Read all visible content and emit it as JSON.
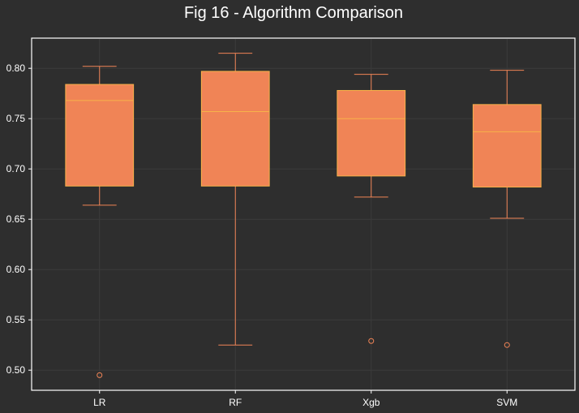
{
  "chart_data": {
    "type": "box",
    "title": "Fig 16 - Algorithm Comparison",
    "xlabel": "",
    "ylabel": "",
    "categories": [
      "LR",
      "RF",
      "Xgb",
      "SVM"
    ],
    "boxes": [
      {
        "category": "LR",
        "whisker_low": 0.664,
        "q1": 0.683,
        "median": 0.768,
        "q3": 0.784,
        "whisker_high": 0.802,
        "outliers": [
          0.495
        ]
      },
      {
        "category": "RF",
        "whisker_low": 0.525,
        "q1": 0.683,
        "median": 0.757,
        "q3": 0.797,
        "whisker_high": 0.815,
        "outliers": []
      },
      {
        "category": "Xgb",
        "whisker_low": 0.672,
        "q1": 0.693,
        "median": 0.75,
        "q3": 0.778,
        "whisker_high": 0.794,
        "outliers": [
          0.529
        ]
      },
      {
        "category": "SVM",
        "whisker_low": 0.651,
        "q1": 0.682,
        "median": 0.737,
        "q3": 0.764,
        "whisker_high": 0.798,
        "outliers": [
          0.525
        ]
      }
    ],
    "y_ticks": [
      "0.50",
      "0.55",
      "0.60",
      "0.65",
      "0.70",
      "0.75",
      "0.80"
    ],
    "ylim": [
      0.48,
      0.83
    ],
    "grid": true,
    "colors": {
      "background": "#2e2e2e",
      "box_fill": "#f08456",
      "box_edge": "#f7b24a",
      "median": "#f7b24a",
      "whisker": "#f08456",
      "outlier": "#f08456",
      "grid": "#3b3b3b",
      "text": "#ffffff",
      "axes": "#ffffff"
    }
  }
}
